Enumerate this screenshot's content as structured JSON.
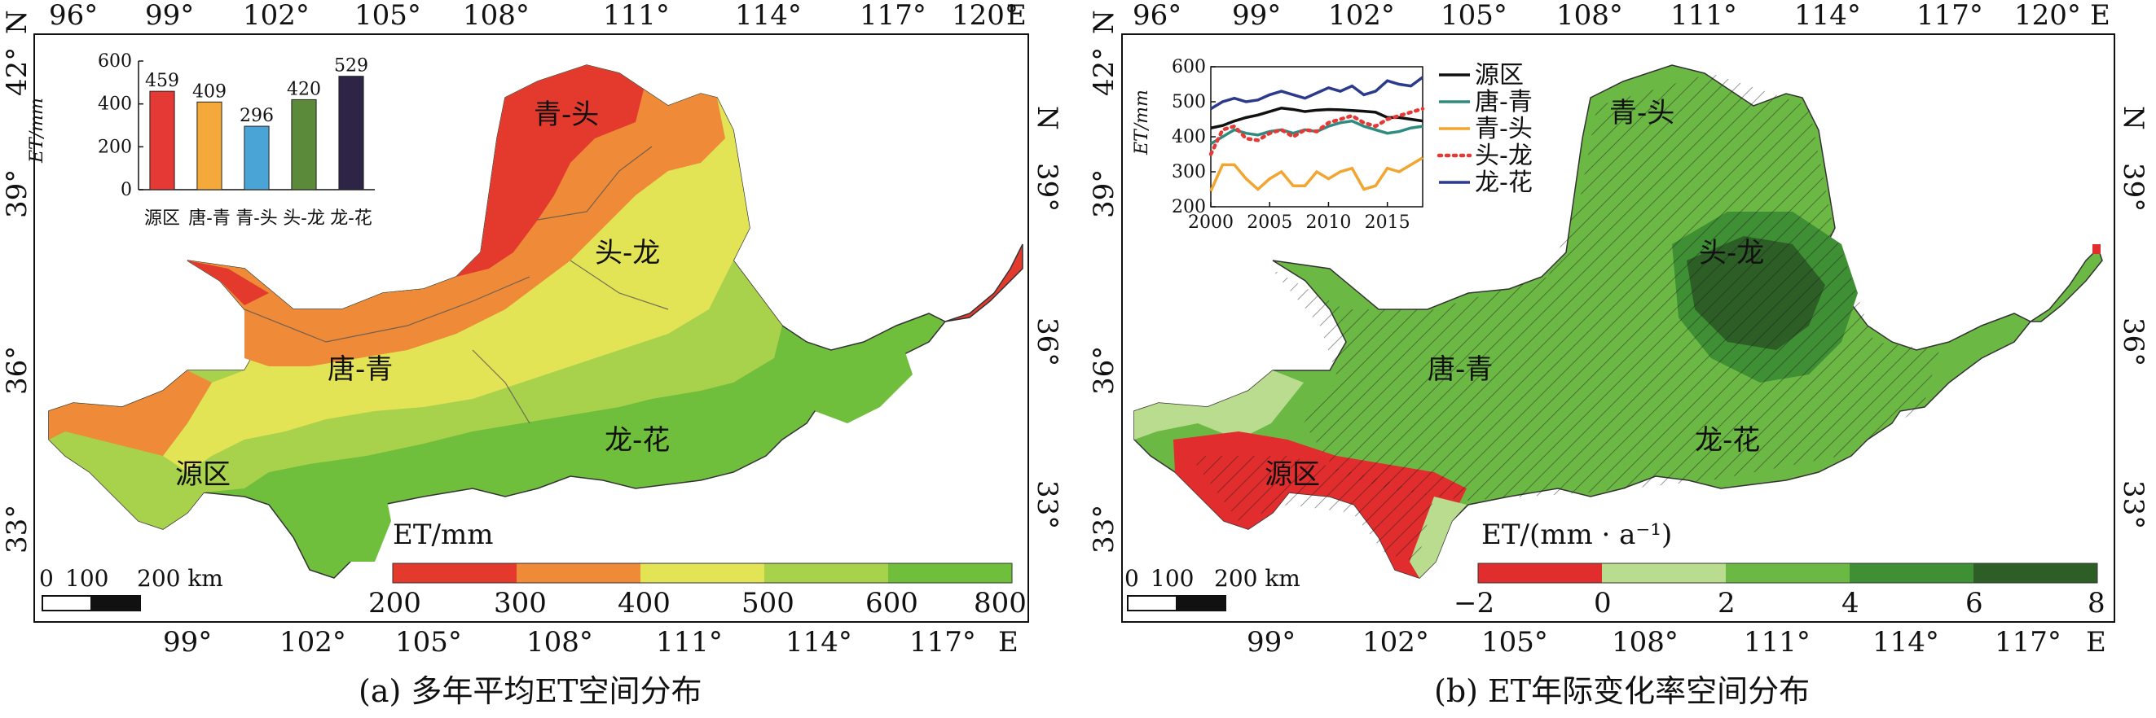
{
  "panel_a": {
    "caption": "(a) 多年平均ET空间分布",
    "top_lon_labels": [
      "96°",
      "99°",
      "102°",
      "105°",
      "108°",
      "111°",
      "114°",
      "117°",
      "120°",
      "E"
    ],
    "bottom_lon_labels": [
      "99°",
      "102°",
      "105°",
      "108°",
      "111°",
      "114°",
      "117°",
      "E"
    ],
    "left_lat_labels": [
      "42°",
      "39°",
      "36°",
      "33°"
    ],
    "left_lat_unit": "N",
    "right_lat_labels": [
      "39°",
      "36°",
      "33°"
    ],
    "right_lat_unit": "N",
    "regions": [
      "青-头",
      "头-龙",
      "唐-青",
      "龙-花",
      "源区"
    ],
    "legend_title": "ET/mm",
    "legend_ticks": [
      "200",
      "300",
      "400",
      "500",
      "600",
      "800"
    ],
    "legend_colors": [
      "#e43a2e",
      "#ee8a38",
      "#e3e356",
      "#a8d14c",
      "#6fbe3c"
    ],
    "scalebar": [
      "0",
      "100",
      "200 km"
    ]
  },
  "panel_b": {
    "caption": "(b) ET年际变化率空间分布",
    "top_lon_labels": [
      "96°",
      "99°",
      "102°",
      "105°",
      "108°",
      "111°",
      "114°",
      "117°",
      "120°",
      "E"
    ],
    "bottom_lon_labels": [
      "99°",
      "102°",
      "105°",
      "108°",
      "111°",
      "114°",
      "117°",
      "E"
    ],
    "left_lat_labels": [
      "42°",
      "39°",
      "36°",
      "33°"
    ],
    "left_lat_unit": "N",
    "right_lat_labels": [
      "39°",
      "36°",
      "33°"
    ],
    "right_lat_unit": "N",
    "regions": [
      "青-头",
      "头-龙",
      "唐-青",
      "龙-花",
      "源区"
    ],
    "legend_title": "ET/(mm · a⁻¹)",
    "legend_ticks": [
      "−2",
      "0",
      "2",
      "4",
      "6",
      "8"
    ],
    "legend_colors": [
      "#e12d2d",
      "#b9dc8e",
      "#6cb844",
      "#3f8f34",
      "#2c5e26"
    ],
    "scalebar": [
      "0",
      "100",
      "200 km"
    ]
  },
  "chart_data": [
    {
      "type": "bar",
      "ylabel": "ET/mm",
      "ylim": [
        0,
        600
      ],
      "yticks": [
        "0",
        "200",
        "400",
        "600"
      ],
      "categories": [
        "源区",
        "唐-青",
        "青-头",
        "头-龙",
        "龙-花"
      ],
      "values": [
        459,
        409,
        296,
        420,
        529
      ],
      "value_labels": [
        "459",
        "409",
        "296",
        "420",
        "529"
      ],
      "colors": [
        "#e53935",
        "#f5a93b",
        "#4aa5d6",
        "#5b8a3a",
        "#2e2446"
      ]
    },
    {
      "type": "line",
      "ylabel": "ET/mm",
      "ylim": [
        200,
        600
      ],
      "yticks": [
        "200",
        "300",
        "400",
        "500",
        "600"
      ],
      "xticks": [
        "2000",
        "2005",
        "2010",
        "2015"
      ],
      "x": [
        2000,
        2001,
        2002,
        2003,
        2004,
        2005,
        2006,
        2007,
        2008,
        2009,
        2010,
        2011,
        2012,
        2013,
        2014,
        2015,
        2016,
        2017,
        2018
      ],
      "series": [
        {
          "name": "源区",
          "color": "#111111",
          "style": "solid",
          "values": [
            425,
            432,
            445,
            455,
            462,
            472,
            482,
            478,
            472,
            476,
            478,
            477,
            475,
            473,
            470,
            455,
            455,
            450,
            445
          ]
        },
        {
          "name": "唐-青",
          "color": "#2e8b80",
          "style": "solid",
          "values": [
            380,
            400,
            420,
            410,
            405,
            415,
            420,
            410,
            420,
            415,
            430,
            440,
            445,
            430,
            420,
            410,
            415,
            425,
            430
          ]
        },
        {
          "name": "青-头",
          "color": "#f2a531",
          "style": "solid",
          "values": [
            245,
            320,
            320,
            280,
            250,
            280,
            300,
            260,
            260,
            300,
            280,
            300,
            310,
            250,
            260,
            310,
            300,
            320,
            340
          ]
        },
        {
          "name": "头-龙",
          "color": "#e53935",
          "style": "dotted",
          "values": [
            350,
            420,
            430,
            395,
            390,
            410,
            420,
            400,
            420,
            415,
            440,
            450,
            460,
            440,
            430,
            450,
            460,
            470,
            480
          ]
        },
        {
          "name": "龙-花",
          "color": "#2b3a8a",
          "style": "solid",
          "values": [
            480,
            500,
            510,
            500,
            505,
            520,
            530,
            520,
            510,
            525,
            540,
            530,
            545,
            520,
            530,
            560,
            550,
            545,
            570
          ]
        }
      ]
    }
  ]
}
